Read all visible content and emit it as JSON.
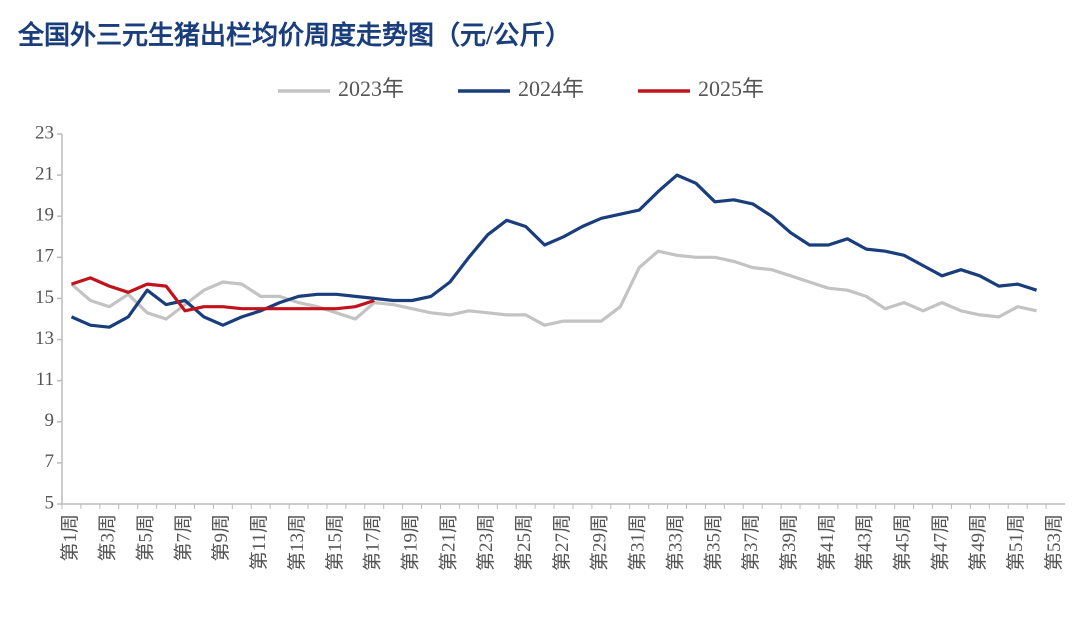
{
  "chart_data": {
    "type": "line",
    "title": "全国外三元生猪出栏均价周度走势图（元/公斤）",
    "categories": [
      "第1周",
      null,
      "第3周",
      null,
      "第5周",
      null,
      "第7周",
      null,
      "第9周",
      null,
      "第11周",
      null,
      "第13周",
      null,
      "第15周",
      null,
      "第17周",
      null,
      "第19周",
      null,
      "第21周",
      null,
      "第23周",
      null,
      "第25周",
      null,
      "第27周",
      null,
      "第29周",
      null,
      "第31周",
      null,
      "第33周",
      null,
      "第35周",
      null,
      "第37周",
      null,
      "第39周",
      null,
      "第41周",
      null,
      "第43周",
      null,
      "第45周",
      null,
      "第47周",
      null,
      "第49周",
      null,
      "第51周",
      null,
      "第53周"
    ],
    "series": [
      {
        "name": "2023年",
        "color": "#c3c3c3",
        "values": [
          15.7,
          14.9,
          14.6,
          15.2,
          14.3,
          14.0,
          14.7,
          15.4,
          15.8,
          15.7,
          15.1,
          15.1,
          14.8,
          14.6,
          14.3,
          14.0,
          14.8,
          14.7,
          14.5,
          14.3,
          14.2,
          14.4,
          14.3,
          14.2,
          14.2,
          13.7,
          13.9,
          13.9,
          13.9,
          14.6,
          16.5,
          17.3,
          17.1,
          17.0,
          17.0,
          16.8,
          16.5,
          16.4,
          16.1,
          15.8,
          15.5,
          15.4,
          15.1,
          14.5,
          14.8,
          14.4,
          14.8,
          14.4,
          14.2,
          14.1,
          14.6,
          14.4,
          null
        ]
      },
      {
        "name": "2024年",
        "color": "#1a3d7c",
        "values": [
          14.1,
          13.7,
          13.6,
          14.1,
          15.4,
          14.7,
          14.9,
          14.1,
          13.7,
          14.1,
          14.4,
          14.8,
          15.1,
          15.2,
          15.2,
          15.1,
          15.0,
          14.9,
          14.9,
          15.1,
          15.8,
          17.0,
          18.1,
          18.8,
          18.5,
          17.6,
          18.0,
          18.5,
          18.9,
          19.1,
          19.3,
          20.2,
          21.0,
          20.6,
          19.7,
          19.8,
          19.6,
          19.0,
          18.2,
          17.6,
          17.6,
          17.9,
          17.4,
          17.3,
          17.1,
          16.6,
          16.1,
          16.4,
          16.1,
          15.6,
          15.7,
          15.4,
          null
        ]
      },
      {
        "name": "2025年",
        "color": "#c0131c",
        "values": [
          15.7,
          16.0,
          15.6,
          15.3,
          15.7,
          15.6,
          14.4,
          14.6,
          14.6,
          14.5,
          14.5,
          14.5,
          14.5,
          14.5,
          14.5,
          14.6,
          14.9,
          null,
          null,
          null,
          null,
          null,
          null,
          null,
          null,
          null,
          null,
          null,
          null,
          null,
          null,
          null,
          null,
          null,
          null,
          null,
          null,
          null,
          null,
          null,
          null,
          null,
          null,
          null,
          null,
          null,
          null,
          null,
          null,
          null,
          null,
          null,
          null
        ]
      }
    ],
    "ylim": [
      5,
      23
    ],
    "yticks": [
      5,
      7,
      9,
      11,
      13,
      15,
      17,
      19,
      21,
      23
    ],
    "grid": false,
    "legend": "top"
  }
}
